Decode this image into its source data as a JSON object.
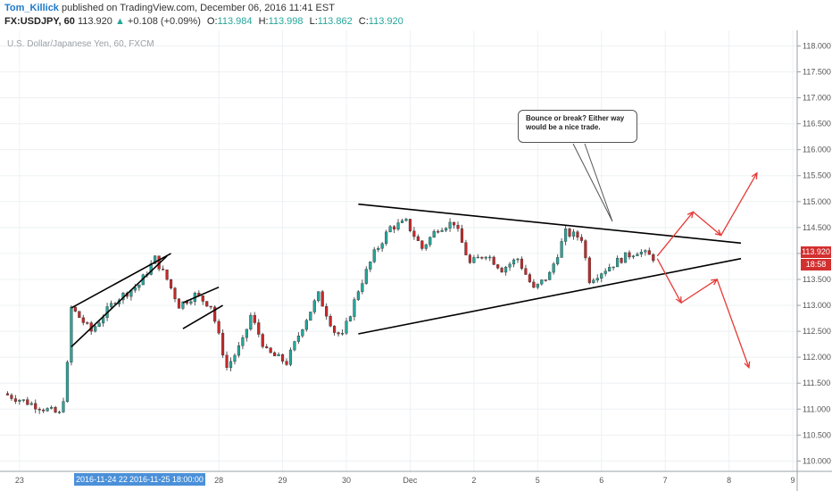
{
  "header": {
    "author": "Tom_Killick",
    "published_text": "published on TradingView.com, December 06, 2016 11:41 EST",
    "symbol": "FX:USDJPY, 60",
    "last": "113.920",
    "change": "+0.108 (+0.09%)",
    "open_label": "O:",
    "open": "113.984",
    "high_label": "H:",
    "high": "113.998",
    "low_label": "L:",
    "low": "113.862",
    "close_label": "C:",
    "close": "113.920"
  },
  "callout_text": "Bounce or break? Either way would be a nice trade.",
  "price_badge": "113.920",
  "countdown_badge": "18:58",
  "highlighted_dates": [
    "2016-11-24 22:0",
    "2016-11-25 18:00:00"
  ],
  "colors": {
    "up": "#26a69a",
    "down": "#c62828",
    "arrow": "#e53935",
    "trendline": "#000000",
    "badge": "#d32f2f",
    "highlight": "#4a90d9"
  },
  "chart_data": {
    "type": "candlestick",
    "title": "U.S. Dollar/Japanese Yen, 60, FXCM",
    "y_ticks": [
      "118.000",
      "117.500",
      "117.000",
      "116.500",
      "116.000",
      "115.500",
      "115.000",
      "114.500",
      "114.000",
      "113.500",
      "113.000",
      "112.500",
      "112.000",
      "111.500",
      "111.000",
      "110.500",
      "110.000"
    ],
    "y_range": [
      109.8,
      118.3
    ],
    "x_ticks": [
      "23",
      "28",
      "29",
      "30",
      "Dec",
      "2",
      "5",
      "6",
      "7",
      "8",
      "9"
    ],
    "x_index_range": [
      0,
      100
    ],
    "x_tick_positions": [
      2,
      27,
      35,
      43,
      51,
      59,
      67,
      75,
      83,
      91,
      99
    ],
    "anchors": [
      {
        "i": 0,
        "p": 111.3
      },
      {
        "i": 7,
        "p": 110.9
      },
      {
        "i": 7.8,
        "p": 111.4
      },
      {
        "i": 8.5,
        "p": 112.95
      },
      {
        "i": 11,
        "p": 112.5
      },
      {
        "i": 14,
        "p": 113.1
      },
      {
        "i": 17,
        "p": 113.4
      },
      {
        "i": 19,
        "p": 113.9
      },
      {
        "i": 20.5,
        "p": 113.5
      },
      {
        "i": 22,
        "p": 113.0
      },
      {
        "i": 24,
        "p": 113.2
      },
      {
        "i": 26,
        "p": 113.0
      },
      {
        "i": 28,
        "p": 111.8
      },
      {
        "i": 30,
        "p": 112.3
      },
      {
        "i": 31,
        "p": 112.8
      },
      {
        "i": 33,
        "p": 112.1
      },
      {
        "i": 35.5,
        "p": 111.9
      },
      {
        "i": 37.5,
        "p": 112.6
      },
      {
        "i": 39.5,
        "p": 113.2
      },
      {
        "i": 41.5,
        "p": 112.5
      },
      {
        "i": 42.5,
        "p": 112.4
      },
      {
        "i": 44.5,
        "p": 113.3
      },
      {
        "i": 46.5,
        "p": 114.0
      },
      {
        "i": 48.5,
        "p": 114.5
      },
      {
        "i": 50.5,
        "p": 114.6
      },
      {
        "i": 52.5,
        "p": 114.1
      },
      {
        "i": 54.5,
        "p": 114.5
      },
      {
        "i": 56.5,
        "p": 114.6
      },
      {
        "i": 58.5,
        "p": 113.8
      },
      {
        "i": 60.5,
        "p": 114.0
      },
      {
        "i": 62.5,
        "p": 113.7
      },
      {
        "i": 64.5,
        "p": 113.9
      },
      {
        "i": 66.5,
        "p": 113.3
      },
      {
        "i": 68.5,
        "p": 113.6
      },
      {
        "i": 70.5,
        "p": 114.4
      },
      {
        "i": 72.5,
        "p": 114.3
      },
      {
        "i": 73.5,
        "p": 113.5
      },
      {
        "i": 75.5,
        "p": 113.7
      },
      {
        "i": 77.5,
        "p": 113.9
      },
      {
        "i": 79.5,
        "p": 114.05
      },
      {
        "i": 81.5,
        "p": 113.92
      }
    ],
    "trendlines": [
      {
        "from": [
          44.5,
          114.95
        ],
        "to": [
          92.5,
          114.2
        ]
      },
      {
        "from": [
          44.5,
          112.45
        ],
        "to": [
          92.5,
          113.9
        ]
      },
      {
        "from": [
          8.5,
          112.2
        ],
        "to": [
          20.5,
          113.95
        ]
      },
      {
        "from": [
          8.5,
          112.95
        ],
        "to": [
          21,
          114.0
        ]
      },
      {
        "from": [
          22.5,
          113.05
        ],
        "to": [
          27,
          113.35
        ]
      },
      {
        "from": [
          22.5,
          112.55
        ],
        "to": [
          27.5,
          113.0
        ]
      }
    ],
    "projection_arrows": [
      [
        [
          82,
          113.95
        ],
        [
          86.5,
          114.8
        ],
        [
          90,
          114.35
        ],
        [
          94.5,
          115.55
        ]
      ],
      [
        [
          82,
          113.9
        ],
        [
          85,
          113.05
        ],
        [
          89.5,
          113.5
        ],
        [
          93.5,
          111.8
        ]
      ]
    ]
  }
}
